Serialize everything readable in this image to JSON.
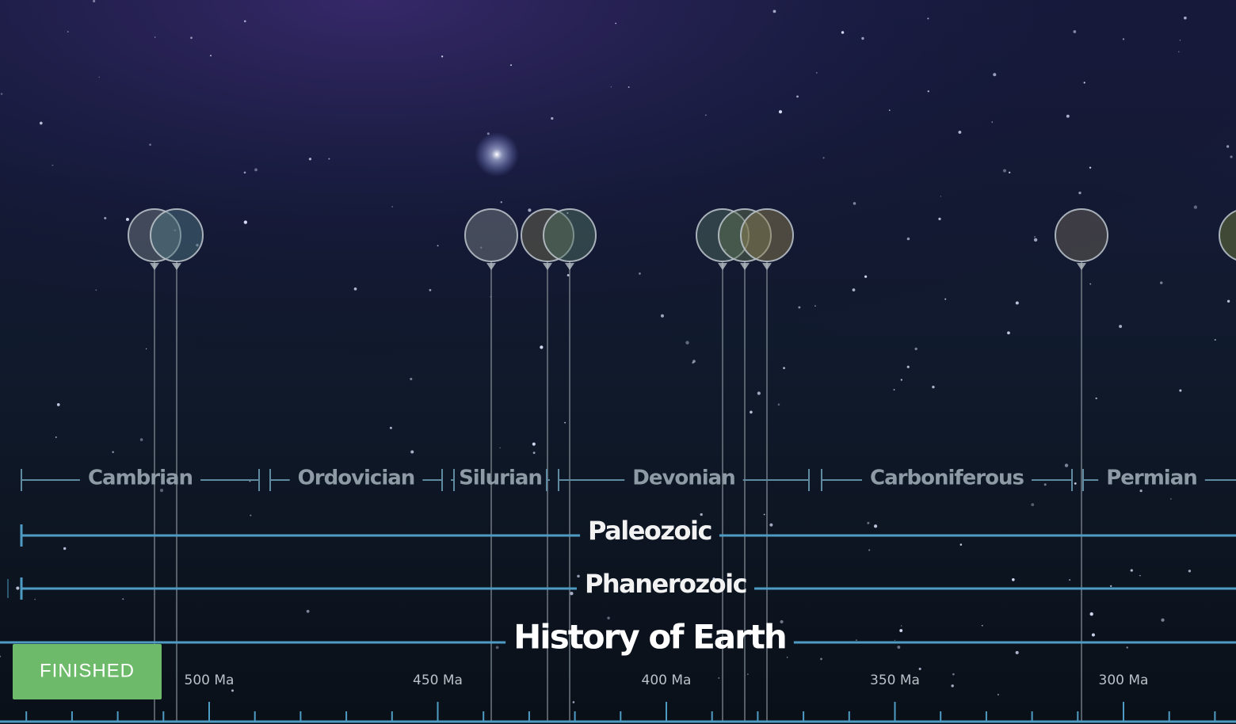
{
  "timeline": {
    "periods": [
      "Cambrian",
      "Ordovician",
      "Silurian",
      "Devonian",
      "Carboniferous",
      "Permian"
    ],
    "eras": [
      "Paleozoic",
      "Phanerozoic"
    ],
    "title": "History of Earth",
    "axis_labels": [
      "500 Ma",
      "450 Ma",
      "400 Ma",
      "350 Ma",
      "300 Ma"
    ]
  },
  "button": {
    "label": "FINISHED"
  }
}
